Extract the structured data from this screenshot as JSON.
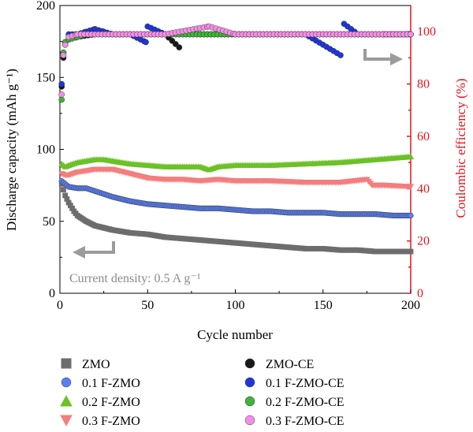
{
  "chart_data": {
    "type": "scatter",
    "xlabel": "Cycle number",
    "ylabel_left": "Discharge capacity (mAh g⁻¹)",
    "ylabel_right": "Coulombic efficiency (%)",
    "xlim": [
      0,
      200
    ],
    "ylim_left": [
      0,
      200
    ],
    "ylim_right": [
      0,
      110
    ],
    "xticks": [
      "0",
      "50",
      "100",
      "150",
      "200"
    ],
    "yticks_left": [
      "0",
      "50",
      "100",
      "150",
      "200"
    ],
    "yticks_right": [
      "0",
      "20",
      "40",
      "60",
      "80",
      "100"
    ],
    "annotation": "Current density: 0.5 A g⁻¹",
    "right_axis_color": "#e8151b",
    "legend_placement": "bottom",
    "capacity_series": [
      {
        "name": "ZMO",
        "marker": "square",
        "color": "#6d6d6d",
        "points": [
          [
            1,
            76
          ],
          [
            2,
            72
          ],
          [
            3,
            68
          ],
          [
            5,
            63
          ],
          [
            8,
            57
          ],
          [
            10,
            54
          ],
          [
            15,
            50
          ],
          [
            20,
            47
          ],
          [
            30,
            44
          ],
          [
            40,
            42
          ],
          [
            50,
            41
          ],
          [
            60,
            39
          ],
          [
            70,
            38
          ],
          [
            80,
            37
          ],
          [
            90,
            36
          ],
          [
            100,
            35
          ],
          [
            110,
            34
          ],
          [
            120,
            33
          ],
          [
            130,
            32
          ],
          [
            140,
            31
          ],
          [
            150,
            31
          ],
          [
            160,
            30
          ],
          [
            170,
            30
          ],
          [
            180,
            29
          ],
          [
            190,
            29
          ],
          [
            200,
            29
          ]
        ]
      },
      {
        "name": "0.1 F-ZMO",
        "marker": "circle",
        "color": "#5b7fee",
        "points": [
          [
            1,
            78
          ],
          [
            3,
            76
          ],
          [
            5,
            74
          ],
          [
            10,
            73
          ],
          [
            15,
            73
          ],
          [
            20,
            71
          ],
          [
            30,
            67
          ],
          [
            40,
            64
          ],
          [
            50,
            62
          ],
          [
            60,
            61
          ],
          [
            70,
            60
          ],
          [
            80,
            59
          ],
          [
            90,
            59
          ],
          [
            100,
            58
          ],
          [
            110,
            57
          ],
          [
            120,
            57
          ],
          [
            130,
            56
          ],
          [
            140,
            56
          ],
          [
            150,
            56
          ],
          [
            160,
            55
          ],
          [
            170,
            55
          ],
          [
            180,
            55
          ],
          [
            190,
            54
          ],
          [
            200,
            54
          ]
        ]
      },
      {
        "name": "0.2 F-ZMO",
        "marker": "triangle-up",
        "color": "#6cc127",
        "points": [
          [
            1,
            90
          ],
          [
            3,
            88
          ],
          [
            5,
            89
          ],
          [
            10,
            91
          ],
          [
            15,
            92
          ],
          [
            20,
            93
          ],
          [
            25,
            93
          ],
          [
            30,
            92
          ],
          [
            40,
            90
          ],
          [
            50,
            89
          ],
          [
            60,
            88
          ],
          [
            70,
            88
          ],
          [
            80,
            88
          ],
          [
            85,
            86
          ],
          [
            90,
            88
          ],
          [
            100,
            89
          ],
          [
            120,
            89
          ],
          [
            140,
            90
          ],
          [
            160,
            91
          ],
          [
            180,
            93
          ],
          [
            200,
            95
          ]
        ]
      },
      {
        "name": "0.3 F-ZMO",
        "marker": "triangle-down",
        "color": "#f47d7d",
        "points": [
          [
            1,
            83
          ],
          [
            3,
            82
          ],
          [
            5,
            82
          ],
          [
            10,
            84
          ],
          [
            15,
            85
          ],
          [
            20,
            86
          ],
          [
            30,
            86
          ],
          [
            40,
            83
          ],
          [
            50,
            80
          ],
          [
            60,
            79
          ],
          [
            70,
            79
          ],
          [
            80,
            78
          ],
          [
            90,
            79
          ],
          [
            100,
            78
          ],
          [
            120,
            78
          ],
          [
            140,
            77
          ],
          [
            160,
            77
          ],
          [
            175,
            79
          ],
          [
            178,
            75
          ],
          [
            185,
            75
          ],
          [
            200,
            74
          ]
        ]
      }
    ],
    "ce_series": [
      {
        "name": "ZMO-CE",
        "marker": "circle",
        "color": "#1a1a1a",
        "points": [
          [
            1,
            79
          ],
          [
            2,
            90
          ],
          [
            3,
            95
          ],
          [
            5,
            97
          ],
          [
            10,
            98
          ],
          [
            20,
            99
          ],
          [
            30,
            99
          ],
          [
            40,
            99
          ],
          [
            50,
            99
          ],
          [
            60,
            99
          ],
          [
            68,
            94
          ],
          [
            70,
            100
          ],
          [
            80,
            99
          ],
          [
            100,
            99
          ],
          [
            120,
            99
          ],
          [
            140,
            99
          ],
          [
            160,
            99
          ],
          [
            180,
            99
          ],
          [
            200,
            99
          ]
        ]
      },
      {
        "name": "0.1 F-ZMO-CE",
        "marker": "circle",
        "color": "#2036d8",
        "points": [
          [
            1,
            80
          ],
          [
            2,
            92
          ],
          [
            3,
            96
          ],
          [
            5,
            99
          ],
          [
            7,
            99
          ],
          [
            10,
            99
          ],
          [
            15,
            100
          ],
          [
            20,
            101
          ],
          [
            25,
            100
          ],
          [
            30,
            99
          ],
          [
            40,
            99
          ],
          [
            49,
            96
          ],
          [
            50,
            102
          ],
          [
            60,
            99
          ],
          [
            80,
            99
          ],
          [
            100,
            99
          ],
          [
            120,
            99
          ],
          [
            140,
            99
          ],
          [
            160,
            91
          ],
          [
            162,
            103
          ],
          [
            170,
            99
          ],
          [
            185,
            99
          ],
          [
            200,
            99
          ]
        ]
      },
      {
        "name": "0.2 F-ZMO-CE",
        "marker": "circle",
        "color": "#3fb339",
        "points": [
          [
            1,
            74
          ],
          [
            2,
            92
          ],
          [
            3,
            96
          ],
          [
            5,
            97
          ],
          [
            10,
            98
          ],
          [
            15,
            99
          ],
          [
            20,
            99
          ],
          [
            30,
            99
          ],
          [
            40,
            99
          ],
          [
            50,
            99
          ],
          [
            60,
            99
          ],
          [
            70,
            99
          ],
          [
            80,
            99
          ],
          [
            90,
            99
          ],
          [
            100,
            99
          ],
          [
            110,
            99
          ],
          [
            120,
            99
          ],
          [
            130,
            99
          ],
          [
            140,
            99
          ],
          [
            150,
            99
          ],
          [
            160,
            99
          ],
          [
            170,
            99
          ],
          [
            180,
            99
          ],
          [
            190,
            99
          ],
          [
            200,
            99
          ]
        ]
      },
      {
        "name": "0.3 F-ZMO-CE",
        "marker": "circle",
        "color": "#f28fe4",
        "points": [
          [
            1,
            76
          ],
          [
            2,
            91
          ],
          [
            3,
            95
          ],
          [
            5,
            98
          ],
          [
            10,
            99
          ],
          [
            20,
            99
          ],
          [
            40,
            99
          ],
          [
            60,
            99
          ],
          [
            85,
            102
          ],
          [
            100,
            99
          ],
          [
            120,
            99
          ],
          [
            140,
            99
          ],
          [
            160,
            99
          ],
          [
            180,
            99
          ],
          [
            200,
            99
          ]
        ]
      }
    ]
  }
}
